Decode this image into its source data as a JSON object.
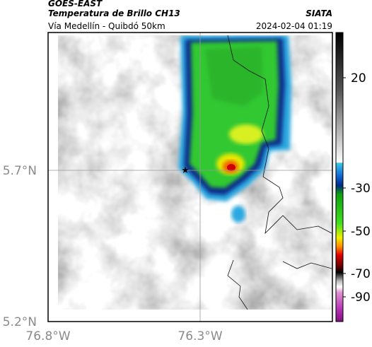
{
  "header": {
    "left_title": "GOES-EAST",
    "subtitle": "Temperatura de Brillo CH13",
    "right_title": "SIATA",
    "route": "Vía Medellín - Quibdó 50km",
    "timestamp": "2024-02-04 01:19"
  },
  "axes": {
    "y_labels": [
      "5.7°N",
      "5.2°N"
    ],
    "x_labels": [
      "76.8°W",
      "76.3°W"
    ]
  },
  "colorbar": {
    "ticks": [
      20,
      -30,
      -50,
      -70,
      -90
    ]
  }
}
